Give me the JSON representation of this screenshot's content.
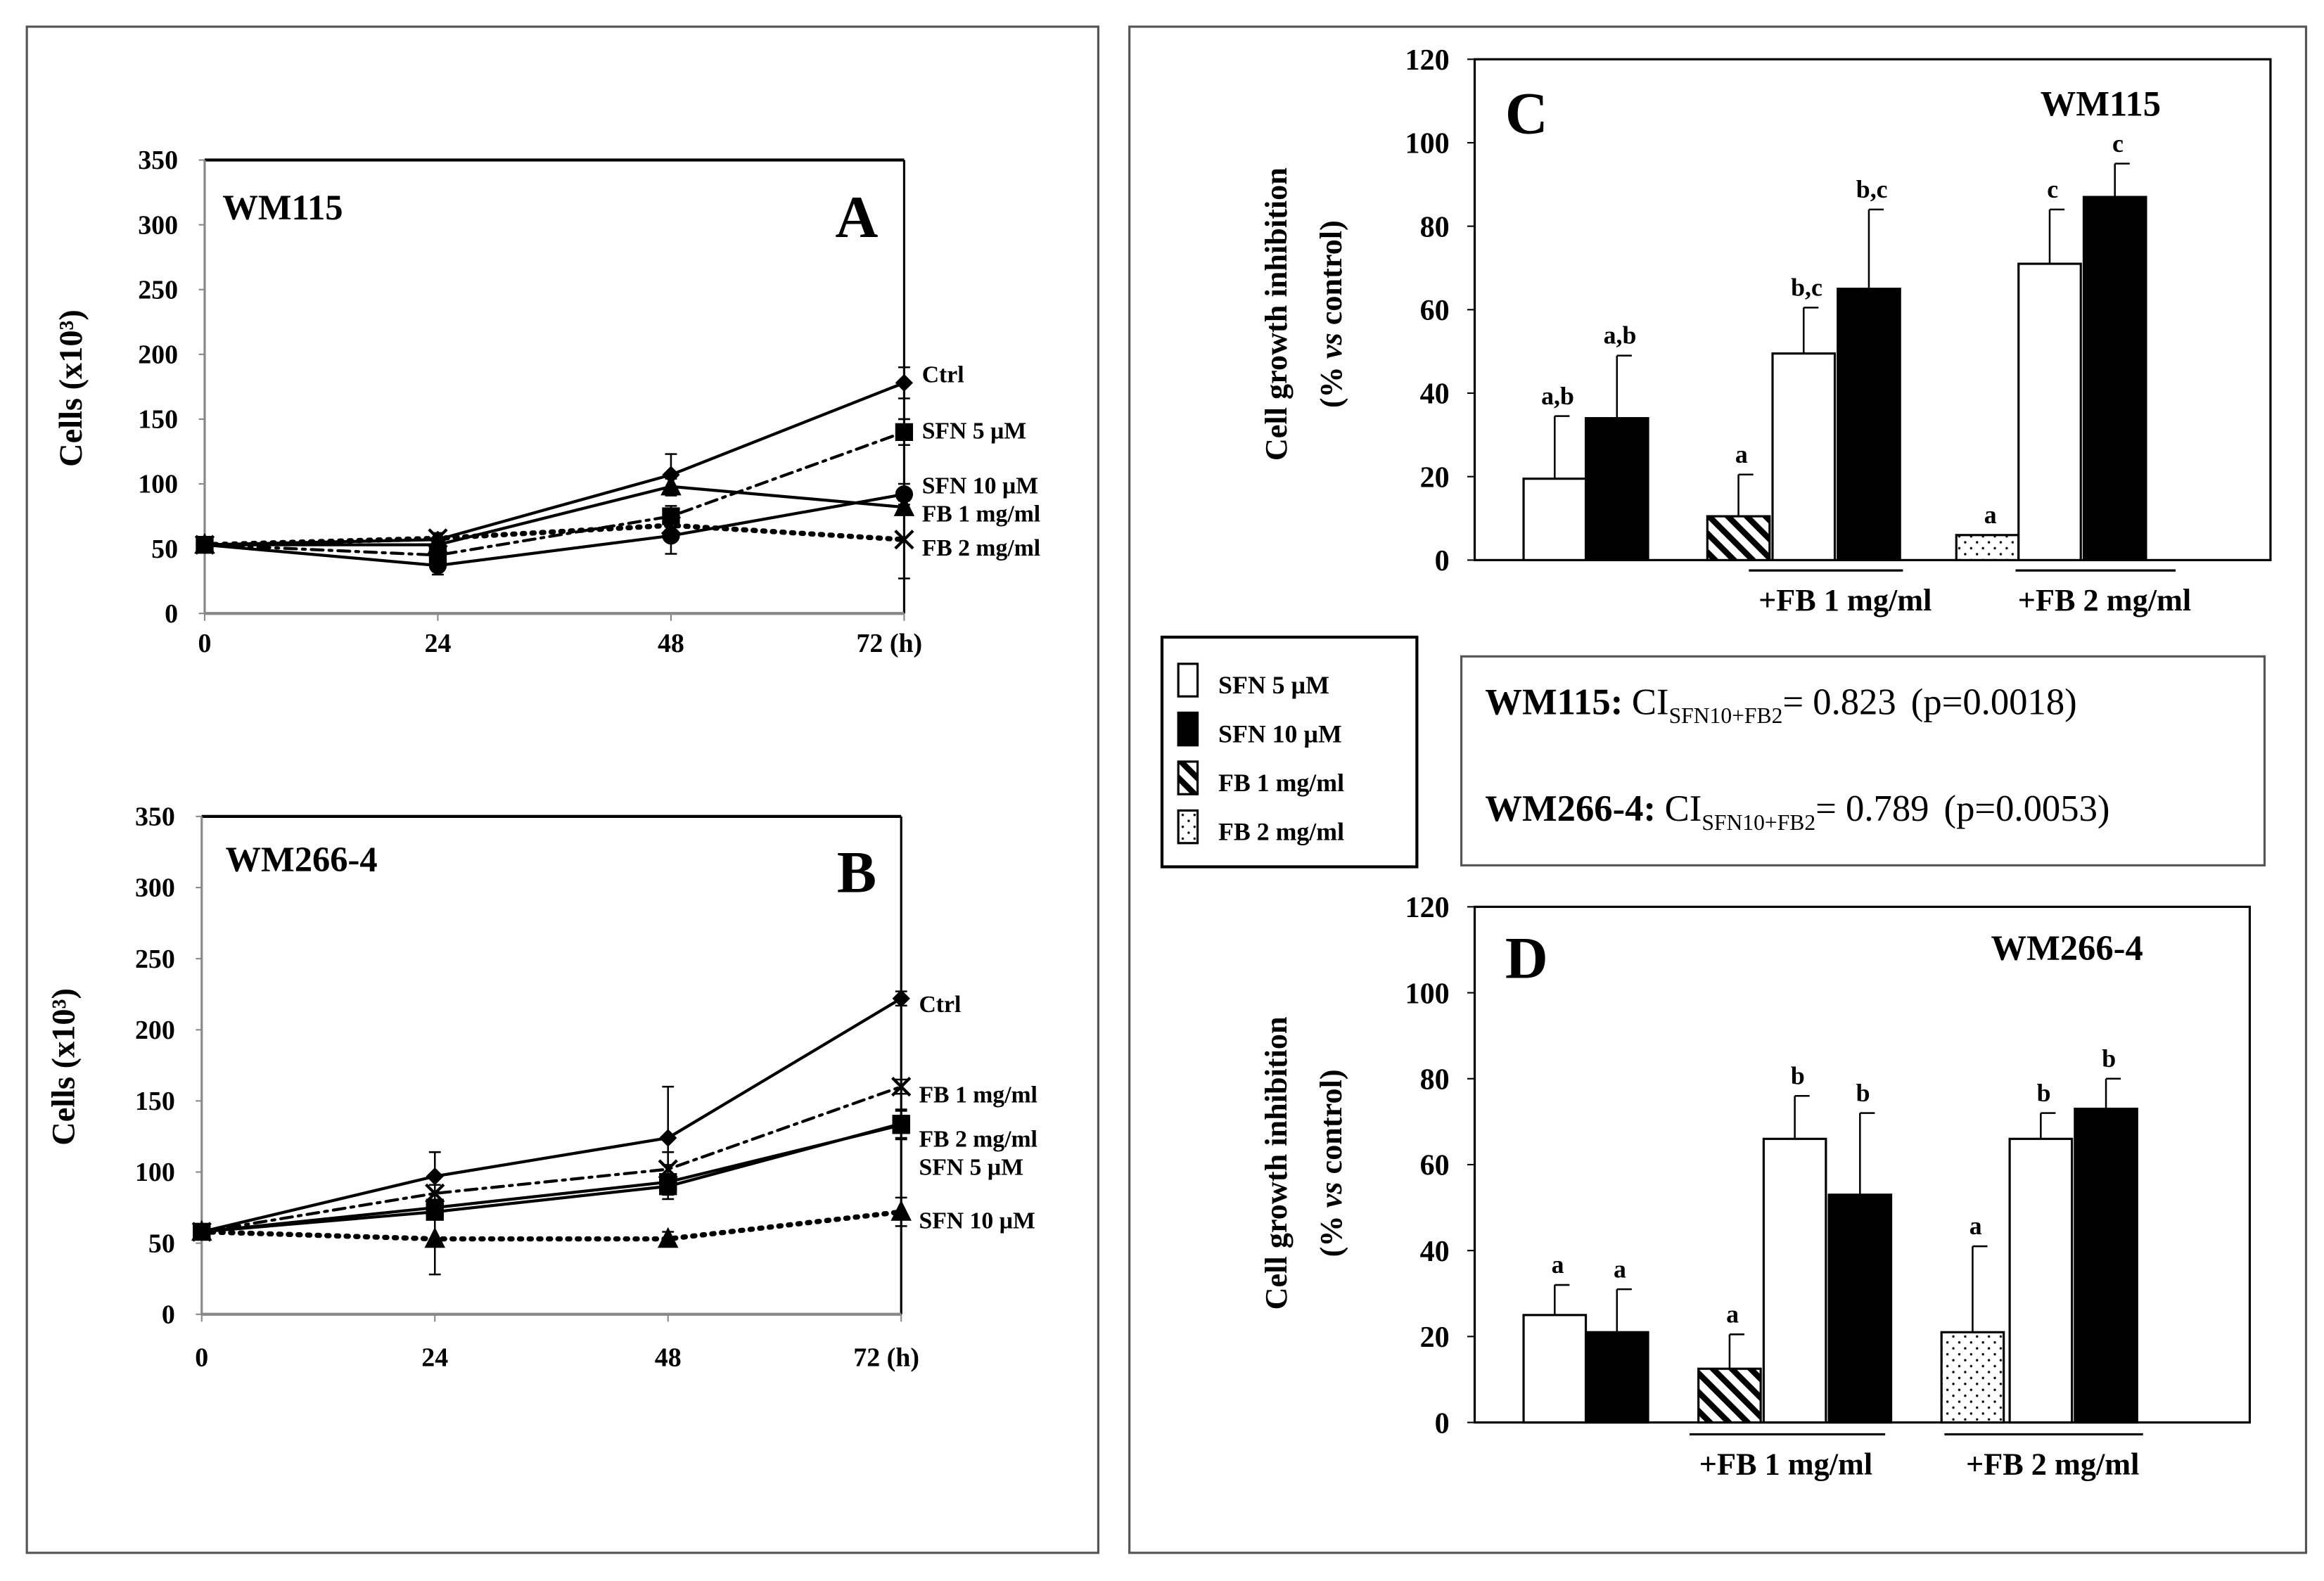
{
  "chart_data": [
    {
      "type": "line",
      "panel": "A",
      "title": "WM115",
      "xlabel": "",
      "ylabel": "Cells (x10³)",
      "x": [
        0,
        24,
        48,
        72
      ],
      "x_tick_labels": [
        "0",
        "24",
        "48",
        "72 (h)"
      ],
      "y_ticks": [
        0,
        50,
        100,
        150,
        200,
        250,
        300,
        350
      ],
      "ylim": [
        0,
        350
      ],
      "series": [
        {
          "name": "Ctrl",
          "marker": "diamond",
          "dash": "solid",
          "values": [
            53,
            57,
            107,
            178
          ],
          "errors": [
            3,
            5,
            16,
            12
          ]
        },
        {
          "name": "SFN 5 µM",
          "marker": "square",
          "dash": "dashdot",
          "values": [
            53,
            45,
            75,
            140
          ],
          "errors": [
            2,
            5,
            8,
            10
          ]
        },
        {
          "name": "SFN 10 µM",
          "marker": "circle",
          "dash": "solid",
          "values": [
            53,
            37,
            60,
            92
          ],
          "errors": [
            2,
            7,
            14,
            8
          ]
        },
        {
          "name": "FB 1 mg/ml",
          "marker": "triangle",
          "dash": "solid",
          "values": [
            53,
            53,
            98,
            82
          ],
          "errors": [
            2,
            4,
            6,
            6
          ]
        },
        {
          "name": "FB 2 mg/ml",
          "marker": "x",
          "dash": "dotted",
          "values": [
            53,
            58,
            68,
            57
          ],
          "errors": [
            2,
            4,
            5,
            30
          ]
        }
      ]
    },
    {
      "type": "line",
      "panel": "B",
      "title": "WM266-4",
      "xlabel": "",
      "ylabel": "Cells (x10³)",
      "x": [
        0,
        24,
        48,
        72
      ],
      "x_tick_labels": [
        "0",
        "24",
        "48",
        "72 (h)"
      ],
      "y_ticks": [
        0,
        50,
        100,
        150,
        200,
        250,
        300,
        350
      ],
      "ylim": [
        0,
        350
      ],
      "series": [
        {
          "name": "Ctrl",
          "marker": "diamond",
          "dash": "solid",
          "values": [
            58,
            97,
            124,
            222
          ],
          "errors": [
            3,
            17,
            36,
            5
          ]
        },
        {
          "name": "FB 1 mg/ml",
          "marker": "x",
          "dash": "dashdot",
          "values": [
            58,
            85,
            102,
            160
          ],
          "errors": [
            3,
            6,
            12,
            5
          ]
        },
        {
          "name": "FB 2 mg/ml",
          "marker": "square",
          "dash": "solid",
          "values": [
            58,
            72,
            90,
            134
          ],
          "errors": [
            3,
            5,
            6,
            10
          ]
        },
        {
          "name": "SFN 5 µM",
          "marker": "square",
          "dash": "solid",
          "values": [
            58,
            75,
            93,
            133
          ],
          "errors": [
            3,
            5,
            12,
            10
          ]
        },
        {
          "name": "SFN 10 µM",
          "marker": "triangle",
          "dash": "dotted",
          "values": [
            58,
            53,
            53,
            72
          ],
          "errors": [
            3,
            25,
            5,
            10
          ]
        }
      ]
    },
    {
      "type": "bar",
      "panel": "C",
      "title": "WM115",
      "ylabel_line1": "Cell growth inhibition",
      "ylabel_line2_pre": "(% ",
      "ylabel_line2_italic": "vs",
      "ylabel_line2_post": " control)",
      "y_ticks": [
        0,
        20,
        40,
        60,
        80,
        100,
        120
      ],
      "ylim": [
        0,
        120
      ],
      "groups": [
        {
          "label": "",
          "bars": [
            {
              "series": "SFN 5 µM",
              "value": 19.5,
              "error": 15,
              "sig": "a,b"
            },
            {
              "series": "SFN 10 µM",
              "value": 34,
              "error": 15,
              "sig": "a,b"
            }
          ]
        },
        {
          "label": "+FB 1 mg/ml",
          "bars": [
            {
              "series": "FB 1 mg/ml",
              "value": 10.5,
              "error": 10,
              "sig": "a"
            },
            {
              "series": "SFN 5 µM",
              "value": 49.5,
              "error": 11,
              "sig": "b,c"
            },
            {
              "series": "SFN 10 µM",
              "value": 65,
              "error": 19,
              "sig": "b,c"
            }
          ]
        },
        {
          "label": "+FB 2 mg/ml",
          "bars": [
            {
              "series": "FB 2 mg/ml",
              "value": 6,
              "error": 0,
              "sig": "a"
            },
            {
              "series": "SFN 5 µM",
              "value": 71,
              "error": 13,
              "sig": "c"
            },
            {
              "series": "SFN 10 µM",
              "value": 87,
              "error": 8,
              "sig": "c"
            }
          ]
        }
      ]
    },
    {
      "type": "bar",
      "panel": "D",
      "title": "WM266-4",
      "ylabel_line1": "Cell growth inhibition",
      "ylabel_line2_pre": "(% ",
      "ylabel_line2_italic": "vs",
      "ylabel_line2_post": " control)",
      "y_ticks": [
        0,
        20,
        40,
        60,
        80,
        100,
        120
      ],
      "ylim": [
        0,
        120
      ],
      "groups": [
        {
          "label": "",
          "bars": [
            {
              "series": "SFN 5 µM",
              "value": 25,
              "error": 7,
              "sig": "a"
            },
            {
              "series": "SFN 10 µM",
              "value": 21,
              "error": 10,
              "sig": "a"
            }
          ]
        },
        {
          "label": "+FB 1 mg/ml",
          "bars": [
            {
              "series": "FB 1 mg/ml",
              "value": 12.5,
              "error": 8,
              "sig": "a"
            },
            {
              "series": "SFN 5 µM",
              "value": 66,
              "error": 10,
              "sig": "b"
            },
            {
              "series": "SFN 10 µM",
              "value": 53,
              "error": 19,
              "sig": "b"
            }
          ]
        },
        {
          "label": "+FB 2 mg/ml",
          "bars": [
            {
              "series": "FB 2 mg/ml",
              "value": 21,
              "error": 20,
              "sig": "a"
            },
            {
              "series": "SFN 5 µM",
              "value": 66,
              "error": 6,
              "sig": "b"
            },
            {
              "series": "SFN 10 µM",
              "value": 73,
              "error": 7,
              "sig": "b"
            }
          ]
        }
      ]
    }
  ],
  "legend": [
    {
      "label": "SFN 5 µM",
      "fill": "white"
    },
    {
      "label": "SFN 10 µM",
      "fill": "black"
    },
    {
      "label": "FB 1 mg/ml",
      "fill": "hatch"
    },
    {
      "label": "FB 2 mg/ml",
      "fill": "dots"
    }
  ],
  "ci_box": [
    {
      "cell_line": "WM115:",
      "ci": "CI",
      "subscript": "SFN10+FB2",
      "value": "= 0.823",
      "p": "(p=0.0018)"
    },
    {
      "cell_line": "WM266-4:",
      "ci": "CI",
      "subscript": "SFN10+FB2",
      "value": "= 0.789",
      "p": "(p=0.0053)"
    }
  ]
}
